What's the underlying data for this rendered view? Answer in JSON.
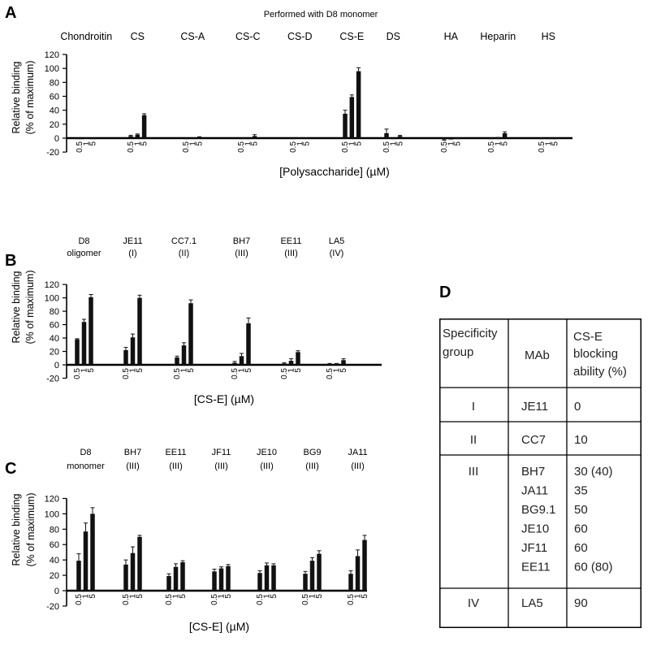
{
  "panel_letters": {
    "a": "A",
    "b": "B",
    "c": "C",
    "d": "D"
  },
  "chart_data": [
    {
      "type": "bar",
      "panel": "A",
      "title": "Performed with D8 monomer",
      "xlabel": "[Polysaccharide] (µM)",
      "ylabel_line1": "Relative binding",
      "ylabel_line2": "(% of maximum)",
      "ylim": [
        -20,
        120
      ],
      "yticks": [
        -20,
        0,
        20,
        40,
        60,
        80,
        100,
        120
      ],
      "dose_labels": [
        "0.5",
        "1",
        "5"
      ],
      "groups": [
        {
          "label": "Chondroitin",
          "values": [
            0,
            0.5,
            0
          ],
          "errors": [
            0,
            0,
            0
          ]
        },
        {
          "label": "CS",
          "values": [
            3,
            5,
            33
          ],
          "errors": [
            1,
            1,
            2
          ]
        },
        {
          "label": "CS-A",
          "values": [
            0,
            0,
            1
          ],
          "errors": [
            0,
            0,
            1
          ]
        },
        {
          "label": "CS-C",
          "values": [
            0,
            0,
            3
          ],
          "errors": [
            0,
            0,
            2
          ]
        },
        {
          "label": "CS-D",
          "values": [
            0,
            0.5,
            1
          ],
          "errors": [
            0,
            0,
            0
          ]
        },
        {
          "label": "CS-E",
          "values": [
            35,
            59,
            96
          ],
          "errors": [
            5,
            3,
            5
          ]
        },
        {
          "label": "DS",
          "values": [
            7,
            0,
            3
          ],
          "errors": [
            6,
            0,
            1
          ]
        },
        {
          "label": "HA",
          "values": [
            -2,
            -2,
            -1
          ],
          "errors": [
            1,
            0,
            0
          ]
        },
        {
          "label": "Heparin",
          "values": [
            0,
            0,
            7
          ],
          "errors": [
            0,
            1,
            2
          ]
        },
        {
          "label": "HS",
          "values": [
            0,
            0,
            0
          ],
          "errors": [
            0,
            0,
            0
          ]
        }
      ]
    },
    {
      "type": "bar",
      "panel": "B",
      "xlabel": "[CS-E] (µM)",
      "ylabel_line1": "Relative binding",
      "ylabel_line2": "(% of maximum)",
      "ylim": [
        -20,
        120
      ],
      "yticks": [
        -20,
        0,
        20,
        40,
        60,
        80,
        100,
        120
      ],
      "dose_labels": [
        "0.5",
        "1",
        "5"
      ],
      "groups": [
        {
          "label": "D8",
          "sublabel": "oligomer",
          "values": [
            38,
            64,
            101
          ],
          "errors": [
            1,
            4,
            4
          ]
        },
        {
          "label": "JE11",
          "sublabel": "(I)",
          "values": [
            22,
            41,
            100
          ],
          "errors": [
            4,
            5,
            4
          ]
        },
        {
          "label": "CC7.1",
          "sublabel": "(II)",
          "values": [
            11,
            29,
            92
          ],
          "errors": [
            2,
            4,
            5
          ]
        },
        {
          "label": "BH7",
          "sublabel": "(III)",
          "values": [
            3,
            13,
            62
          ],
          "errors": [
            2,
            4,
            8
          ]
        },
        {
          "label": "EE11",
          "sublabel": "(III)",
          "values": [
            2,
            6,
            19
          ],
          "errors": [
            1,
            3,
            2
          ]
        },
        {
          "label": "LA5",
          "sublabel": "(IV)",
          "values": [
            1,
            1,
            7
          ],
          "errors": [
            1,
            1,
            2
          ]
        }
      ]
    },
    {
      "type": "bar",
      "panel": "C",
      "xlabel": "[CS-E] (µM)",
      "ylabel_line1": "Relative binding",
      "ylabel_line2": "(% of maximum)",
      "ylim": [
        -20,
        120
      ],
      "yticks": [
        -20,
        0,
        20,
        40,
        60,
        80,
        100,
        120
      ],
      "dose_labels": [
        "0.5",
        "1",
        "5"
      ],
      "groups": [
        {
          "label": "D8",
          "sublabel": "monomer",
          "values": [
            39,
            77,
            100
          ],
          "errors": [
            9,
            11,
            8
          ]
        },
        {
          "label": "BH7",
          "sublabel": "(III)",
          "values": [
            34,
            49,
            70
          ],
          "errors": [
            6,
            8,
            2
          ]
        },
        {
          "label": "EE11",
          "sublabel": "(III)",
          "values": [
            19,
            31,
            37
          ],
          "errors": [
            3,
            4,
            2
          ]
        },
        {
          "label": "JF11",
          "sublabel": "(III)",
          "values": [
            25,
            29,
            32
          ],
          "errors": [
            3,
            2,
            2
          ]
        },
        {
          "label": "JE10",
          "sublabel": "(III)",
          "values": [
            23,
            33,
            33
          ],
          "errors": [
            3,
            3,
            2
          ]
        },
        {
          "label": "BG9",
          "sublabel": "(III)",
          "values": [
            22,
            39,
            48
          ],
          "errors": [
            3,
            4,
            4
          ]
        },
        {
          "label": "JA11",
          "sublabel": "(III)",
          "values": [
            22,
            45,
            66
          ],
          "errors": [
            4,
            8,
            6
          ]
        }
      ]
    },
    {
      "type": "table",
      "panel": "D",
      "headers": [
        [
          "Specificity",
          "group"
        ],
        [
          "MAb"
        ],
        [
          "CS-E",
          "blocking",
          "ability (%)"
        ]
      ],
      "rows": [
        {
          "group": "I",
          "mabs": [
            "JE11"
          ],
          "values": [
            "0"
          ]
        },
        {
          "group": "II",
          "mabs": [
            "CC7"
          ],
          "values": [
            "10"
          ]
        },
        {
          "group": "III",
          "mabs": [
            "BH7",
            "JA11",
            "BG9.1",
            "JE10",
            "JF11",
            "EE11"
          ],
          "values": [
            "30 (40)",
            "35",
            "50",
            "60",
            "60",
            "60 (80)"
          ]
        },
        {
          "group": "IV",
          "mabs": [
            "LA5"
          ],
          "values": [
            "90"
          ]
        }
      ]
    }
  ]
}
